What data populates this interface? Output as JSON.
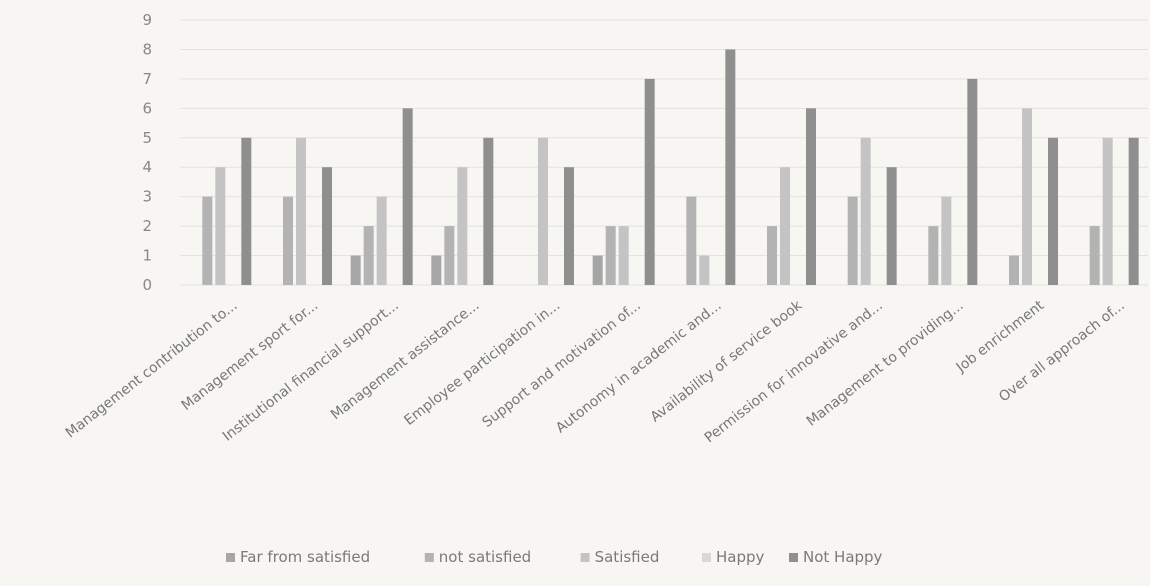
{
  "chart_data": {
    "type": "bar",
    "title": "",
    "xlabel": "",
    "ylabel": "",
    "ylim": [
      0,
      9
    ],
    "yticks": [
      0,
      1,
      2,
      3,
      4,
      5,
      6,
      7,
      8,
      9
    ],
    "grid": true,
    "legend_position": "bottom",
    "categories": [
      "Management contribution to...",
      "Management sport for...",
      "Institutional financial support...",
      "Management assistance...",
      "Employee participation in...",
      "Support and motivation of...",
      "Autonomy in academic and...",
      "Availability of service book",
      "Permission for innovative and...",
      "Management to providing...",
      "Job enrichment",
      "Over all approach of..."
    ],
    "series": [
      {
        "name": "Far from satisfied",
        "color": "#a6a6a6",
        "values": [
          0,
          0,
          1,
          1,
          0,
          1,
          0,
          0,
          0,
          0,
          0,
          0
        ]
      },
      {
        "name": "not satisfied",
        "color": "#b3b3b3",
        "values": [
          3,
          3,
          2,
          2,
          0,
          2,
          3,
          2,
          3,
          2,
          1,
          2
        ]
      },
      {
        "name": "Satisfied",
        "color": "#c4c4c4",
        "values": [
          4,
          5,
          3,
          4,
          5,
          2,
          1,
          4,
          5,
          3,
          6,
          5
        ]
      },
      {
        "name": "Happy",
        "color": "#d8d8d8",
        "values": [
          0,
          0,
          0,
          0,
          0,
          0,
          0,
          0,
          0,
          0,
          0,
          0
        ]
      },
      {
        "name": "Not Happy",
        "color": "#8f8f8f",
        "values": [
          5,
          4,
          6,
          5,
          4,
          7,
          8,
          6,
          4,
          7,
          5,
          5
        ]
      }
    ]
  }
}
